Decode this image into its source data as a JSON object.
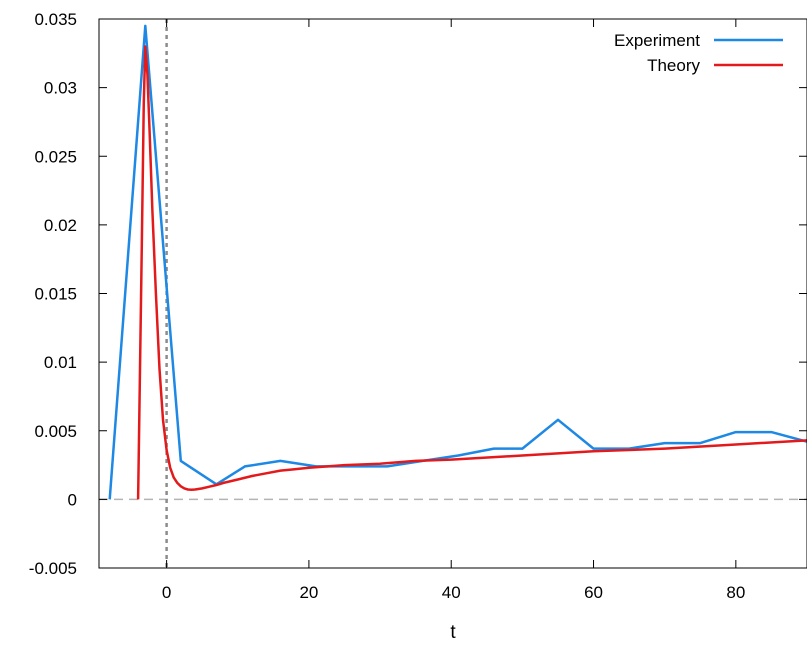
{
  "chart_data": {
    "type": "line",
    "title": "",
    "xlabel": "t",
    "ylabel": "",
    "xlim": [
      -9.5,
      90
    ],
    "ylim": [
      -0.005,
      0.035
    ],
    "xticks": [
      0,
      20,
      40,
      60,
      80
    ],
    "xtick_labels": [
      "0",
      "20",
      "40",
      "60",
      "80"
    ],
    "yticks": [
      -0.005,
      0,
      0.005,
      0.01,
      0.015,
      0.02,
      0.025,
      0.03,
      0.035
    ],
    "ytick_labels": [
      "-0.005",
      "0",
      "0.005",
      "0.01",
      "0.015",
      "0.02",
      "0.025",
      "0.03",
      "0.035"
    ],
    "grid": false,
    "legend_position": "top-right",
    "reference_lines": {
      "vertical_x": 0,
      "horizontal_y": 0
    },
    "series": [
      {
        "name": "Experiment",
        "color": "#1e88e5",
        "x": [
          -8,
          -3,
          2,
          7,
          11,
          16,
          21,
          26,
          31,
          36,
          41,
          46,
          50,
          55,
          60,
          65,
          70,
          75,
          80,
          85,
          90
        ],
        "y": [
          0.0,
          0.0345,
          0.0028,
          0.0011,
          0.0024,
          0.0028,
          0.0024,
          0.0024,
          0.0024,
          0.0028,
          0.0032,
          0.0037,
          0.0037,
          0.0058,
          0.0037,
          0.0037,
          0.0041,
          0.0041,
          0.0049,
          0.0049,
          0.0042
        ]
      },
      {
        "name": "Theory",
        "color": "#e31a1c",
        "x": [
          -4,
          -3.5,
          -3.2,
          -3,
          -2.7,
          -2.4,
          -2,
          -1.5,
          -1,
          -0.5,
          0,
          0.5,
          1,
          1.5,
          2,
          2.5,
          3,
          3.5,
          4,
          5,
          6,
          7,
          8,
          10,
          12,
          14,
          16,
          18,
          20,
          25,
          30,
          35,
          40,
          50,
          60,
          70,
          80,
          90
        ],
        "y": [
          0.0,
          0.018,
          0.029,
          0.033,
          0.031,
          0.027,
          0.021,
          0.015,
          0.0095,
          0.0058,
          0.0036,
          0.0023,
          0.0016,
          0.0012,
          0.00095,
          0.0008,
          0.00072,
          0.0007,
          0.00072,
          0.0008,
          0.00092,
          0.00105,
          0.0012,
          0.00145,
          0.0017,
          0.0019,
          0.0021,
          0.0022,
          0.0023,
          0.0025,
          0.0026,
          0.0028,
          0.0029,
          0.0032,
          0.0035,
          0.0037,
          0.004,
          0.0043
        ]
      }
    ]
  }
}
